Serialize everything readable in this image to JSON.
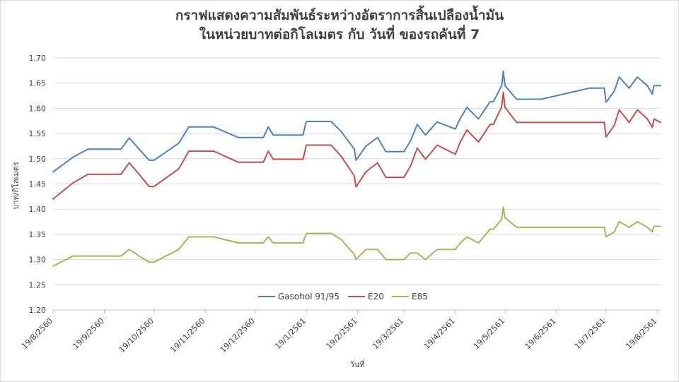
{
  "chart_data": {
    "type": "line",
    "title_line1": "กราฟแสดงความสัมพันธ์ระหว่างอัตราการสิ้นเปลืองน้ำมัน",
    "title_line2": "ในหน่วยบาทต่อกิโลเมตร  กับ วันที่ ของรถคันที่ 7",
    "xlabel": "วันที่",
    "ylabel": "บาท/กิโลเมตร",
    "ylim": [
      1.2,
      1.7
    ],
    "y_ticks": [
      "1.20",
      "1.25",
      "1.30",
      "1.35",
      "1.40",
      "1.45",
      "1.50",
      "1.55",
      "1.60",
      "1.65",
      "1.70"
    ],
    "x_ticks": [
      "19/8/2560",
      "19/9/2560",
      "19/10/2560",
      "19/11/2560",
      "19/12/2560",
      "19/1/2561",
      "19/2/2561",
      "19/3/2561",
      "19/4/2561",
      "19/5/2561",
      "19/6/2561",
      "19/7/2561",
      "19/8/2561"
    ],
    "x_tick_dates": [
      "2017-08-19",
      "2017-09-19",
      "2017-10-19",
      "2017-11-19",
      "2017-12-19",
      "2018-01-19",
      "2018-02-19",
      "2018-03-19",
      "2018-04-19",
      "2018-05-19",
      "2018-06-19",
      "2018-07-19",
      "2018-08-19"
    ],
    "xlim": [
      "2017-08-19",
      "2018-08-21"
    ],
    "grid": "horizontal",
    "legend_position": "bottom",
    "x": [
      "2017-08-19",
      "2017-08-31",
      "2017-09-09",
      "2017-09-29",
      "2017-10-04",
      "2017-10-10",
      "2017-10-16",
      "2017-10-19",
      "2017-11-03",
      "2017-11-09",
      "2017-11-24",
      "2017-12-09",
      "2017-12-24",
      "2017-12-27",
      "2017-12-30",
      "2018-01-17",
      "2018-01-19",
      "2018-02-03",
      "2018-02-09",
      "2018-02-17",
      "2018-02-18",
      "2018-02-24",
      "2018-03-03",
      "2018-03-08",
      "2018-03-19",
      "2018-03-23",
      "2018-03-27",
      "2018-04-01",
      "2018-04-08",
      "2018-04-19",
      "2018-04-22",
      "2018-04-26",
      "2018-05-03",
      "2018-05-10",
      "2018-05-12",
      "2018-05-17",
      "2018-05-18",
      "2018-05-19",
      "2018-05-26",
      "2018-05-30",
      "2018-06-10",
      "2018-07-09",
      "2018-07-18",
      "2018-07-19",
      "2018-07-24",
      "2018-07-27",
      "2018-08-02",
      "2018-08-07",
      "2018-08-13",
      "2018-08-16",
      "2018-08-17",
      "2018-08-21"
    ],
    "series": [
      {
        "name": "Gasohol 91/95",
        "color": "#4f81bd",
        "values": [
          1.474,
          1.503,
          1.519,
          1.519,
          1.541,
          1.519,
          1.497,
          1.497,
          1.531,
          1.563,
          1.563,
          1.542,
          1.542,
          1.563,
          1.547,
          1.547,
          1.574,
          1.574,
          1.554,
          1.519,
          1.497,
          1.525,
          1.542,
          1.514,
          1.514,
          1.536,
          1.568,
          1.547,
          1.573,
          1.559,
          1.58,
          1.602,
          1.579,
          1.613,
          1.613,
          1.645,
          1.674,
          1.645,
          1.618,
          1.618,
          1.618,
          1.64,
          1.64,
          1.612,
          1.634,
          1.662,
          1.64,
          1.662,
          1.645,
          1.628,
          1.645,
          1.645
        ]
      },
      {
        "name": "E20",
        "color": "#c0504d",
        "values": [
          1.42,
          1.452,
          1.469,
          1.469,
          1.492,
          1.469,
          1.445,
          1.445,
          1.48,
          1.515,
          1.515,
          1.493,
          1.493,
          1.515,
          1.499,
          1.499,
          1.527,
          1.527,
          1.505,
          1.466,
          1.444,
          1.474,
          1.492,
          1.463,
          1.463,
          1.486,
          1.521,
          1.499,
          1.527,
          1.509,
          1.533,
          1.557,
          1.533,
          1.568,
          1.568,
          1.603,
          1.632,
          1.602,
          1.572,
          1.572,
          1.572,
          1.572,
          1.572,
          1.543,
          1.566,
          1.597,
          1.572,
          1.597,
          1.579,
          1.562,
          1.579,
          1.572
        ]
      },
      {
        "name": "E85",
        "color": "#9bbb59",
        "values": [
          1.287,
          1.307,
          1.307,
          1.307,
          1.32,
          1.307,
          1.295,
          1.295,
          1.32,
          1.345,
          1.345,
          1.333,
          1.333,
          1.345,
          1.333,
          1.333,
          1.352,
          1.352,
          1.34,
          1.31,
          1.3,
          1.32,
          1.32,
          1.3,
          1.3,
          1.313,
          1.313,
          1.3,
          1.32,
          1.32,
          1.333,
          1.345,
          1.333,
          1.36,
          1.36,
          1.38,
          1.404,
          1.383,
          1.364,
          1.364,
          1.364,
          1.364,
          1.364,
          1.345,
          1.355,
          1.375,
          1.364,
          1.375,
          1.364,
          1.355,
          1.366,
          1.366
        ]
      }
    ]
  }
}
